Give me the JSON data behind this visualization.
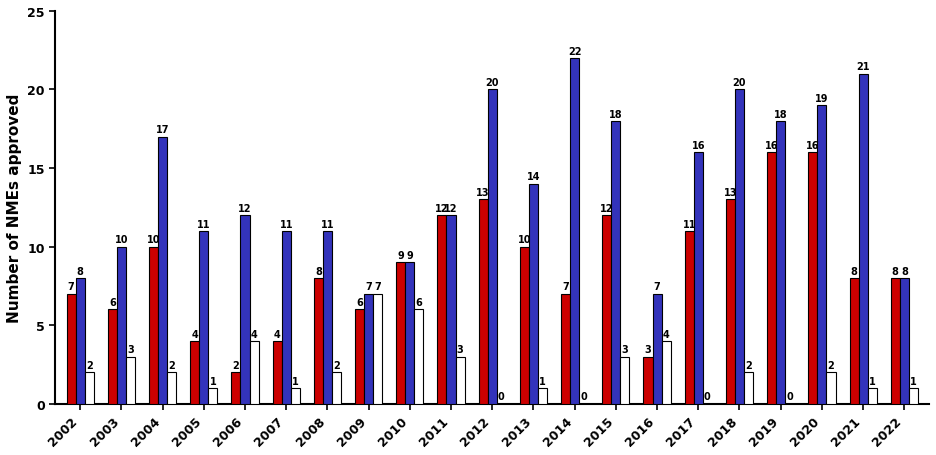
{
  "years": [
    2002,
    2003,
    2004,
    2005,
    2006,
    2007,
    2008,
    2009,
    2010,
    2011,
    2012,
    2013,
    2014,
    2015,
    2016,
    2017,
    2018,
    2019,
    2020,
    2021,
    2022
  ],
  "achiral": [
    7,
    6,
    10,
    4,
    2,
    4,
    8,
    6,
    9,
    12,
    13,
    10,
    7,
    12,
    3,
    11,
    13,
    16,
    16,
    8,
    8
  ],
  "single_enantiomer": [
    8,
    10,
    17,
    11,
    12,
    11,
    11,
    7,
    9,
    12,
    20,
    14,
    22,
    18,
    7,
    16,
    20,
    18,
    19,
    21,
    8
  ],
  "racemic": [
    2,
    3,
    2,
    1,
    4,
    1,
    2,
    7,
    6,
    3,
    0,
    1,
    0,
    3,
    4,
    0,
    2,
    0,
    2,
    1,
    1
  ],
  "bar_colors": {
    "achiral": "#CC0000",
    "single_enantiomer": "#3333BB",
    "racemic": "#FFFFFF"
  },
  "bar_edgecolor": "#000000",
  "ylabel": "Number of NMEs approved",
  "ylim": [
    0,
    25
  ],
  "yticks": [
    0,
    5,
    10,
    15,
    20,
    25
  ],
  "bar_width": 0.22,
  "annotation_fontsize": 7.0,
  "label_fontsize": 11,
  "tick_fontsize": 9,
  "background_color": "#FFFFFF"
}
